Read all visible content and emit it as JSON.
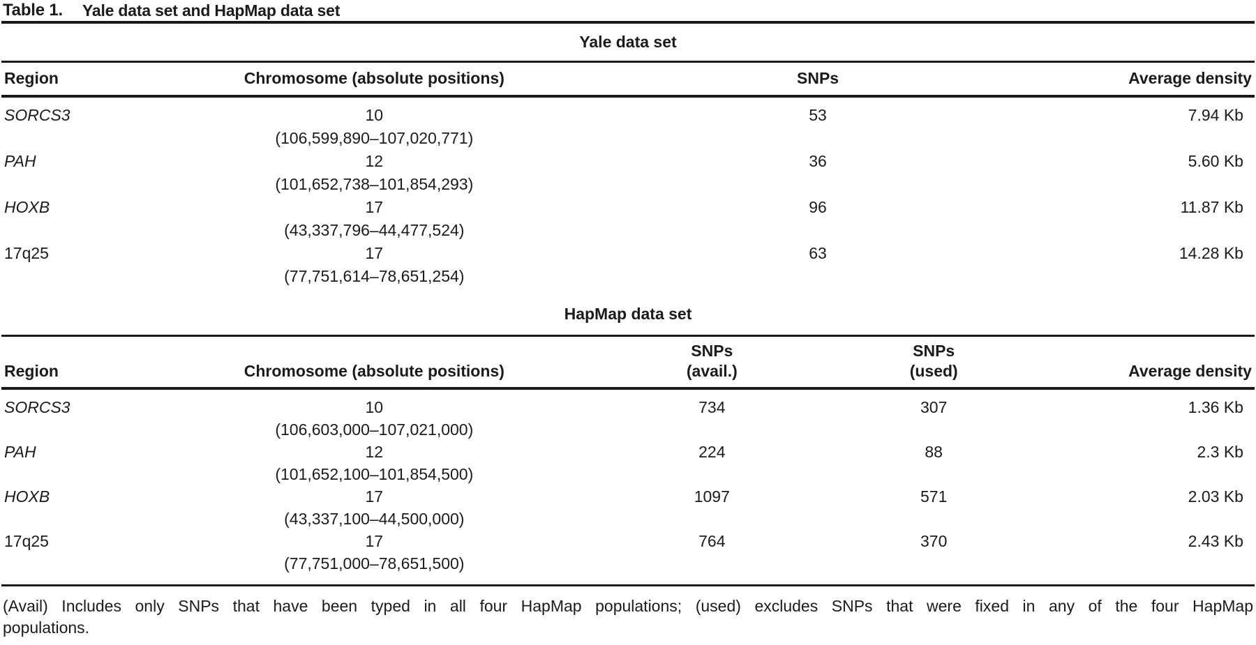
{
  "title": {
    "label": "Table 1.",
    "text": "Yale data set and HapMap data set"
  },
  "yale": {
    "section_title": "Yale data set",
    "headers": {
      "region": "Region",
      "chromosome": "Chromosome (absolute positions)",
      "snps": "SNPs",
      "density": "Average density"
    },
    "rows": [
      {
        "region": "SORCS3",
        "chromosome": "10",
        "positions": "(106,599,890–107,020,771)",
        "snps": "53",
        "density": "7.94 Kb"
      },
      {
        "region": "PAH",
        "chromosome": "12",
        "positions": "(101,652,738–101,854,293)",
        "snps": "36",
        "density": "5.60 Kb"
      },
      {
        "region": "HOXB",
        "chromosome": "17",
        "positions": "(43,337,796–44,477,524)",
        "snps": "96",
        "density": "11.87 Kb"
      },
      {
        "region": "17q25",
        "chromosome": "17",
        "positions": "(77,751,614–78,651,254)",
        "snps": "63",
        "density": "14.28 Kb"
      }
    ]
  },
  "hapmap": {
    "section_title": "HapMap data set",
    "headers": {
      "region": "Region",
      "chromosome": "Chromosome (absolute positions)",
      "snps_avail_line1": "SNPs",
      "snps_avail_line2": "(avail.)",
      "snps_used_line1": "SNPs",
      "snps_used_line2": "(used)",
      "density": "Average density"
    },
    "rows": [
      {
        "region": "SORCS3",
        "chromosome": "10",
        "positions": "(106,603,000–107,021,000)",
        "snps_avail": "734",
        "snps_used": "307",
        "density": "1.36 Kb"
      },
      {
        "region": "PAH",
        "chromosome": "12",
        "positions": "(101,652,100–101,854,500)",
        "snps_avail": "224",
        "snps_used": "88",
        "density": "2.3 Kb"
      },
      {
        "region": "HOXB",
        "chromosome": "17",
        "positions": "(43,337,100–44,500,000)",
        "snps_avail": "1097",
        "snps_used": "571",
        "density": "2.03 Kb"
      },
      {
        "region": "17q25",
        "chromosome": "17",
        "positions": "(77,751,000–78,651,500)",
        "snps_avail": "764",
        "snps_used": "370",
        "density": "2.43 Kb"
      }
    ]
  },
  "footnote": {
    "line1": "(Avail) Includes only SNPs that have been typed in all four HapMap populations; (used) excludes SNPs that were fixed in any of the four HapMap",
    "line2": "populations."
  }
}
